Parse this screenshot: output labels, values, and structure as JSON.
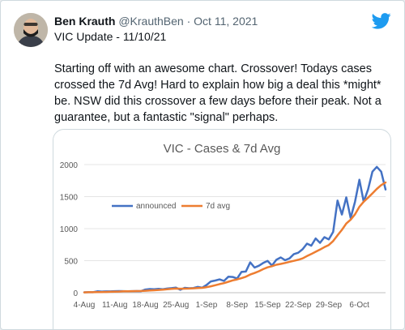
{
  "tweet": {
    "author_name": "Ben Krauth",
    "handle": "@KrauthBen",
    "separator": " · ",
    "date": "Oct 11, 2021",
    "subline": "VIC Update - 11/10/21",
    "text": "Starting off with an awesome chart. Crossover! Todays cases crossed the 7d Avg! Hard to explain how big a deal this *might* be. NSW did this crossover a few days before their peak. Not a guarantee, but a fantastic \"signal\" perhaps."
  },
  "icons": {
    "platform": "twitter-bird-icon",
    "avatar": "avatar-photo"
  },
  "colors": {
    "announced": "#4472c4",
    "avg": "#ed7d31",
    "brand": "#1d9bf0"
  },
  "chart_data": {
    "type": "line",
    "title": "VIC - Cases & 7d Avg",
    "xlabel": "",
    "ylabel": "",
    "ylim": [
      0,
      2000
    ],
    "yticks": [
      "0",
      "500",
      "1000",
      "1500",
      "2000"
    ],
    "xticks": [
      "4-Aug",
      "11-Aug",
      "18-Aug",
      "25-Aug",
      "1-Sep",
      "8-Sep",
      "15-Sep",
      "22-Sep",
      "29-Sep",
      "6-Oct"
    ],
    "grid": true,
    "legend_position": "top-left",
    "series": [
      {
        "name": "announced",
        "values": [
          6,
          8,
          8,
          21,
          18,
          20,
          20,
          24,
          25,
          24,
          22,
          24,
          25,
          24,
          50,
          57,
          55,
          61,
          55,
          64,
          71,
          80,
          45,
          76,
          70,
          73,
          90,
          78,
          120,
          176,
          190,
          208,
          183,
          250,
          246,
          220,
          324,
          330,
          473,
          392,
          421,
          465,
          496,
          424,
          514,
          551,
          507,
          535,
          603,
          624,
          679,
          766,
          734,
          847,
          779,
          867,
          833,
          950,
          1438,
          1220,
          1488,
          1166,
          1420,
          1763,
          1420,
          1612,
          1890,
          1965,
          1890,
          1612
        ]
      },
      {
        "name": "7d avg",
        "values": [
          5,
          7,
          8,
          9,
          10,
          12,
          14,
          16,
          18,
          21,
          22,
          24,
          25,
          26,
          30,
          34,
          38,
          43,
          48,
          53,
          59,
          65,
          62,
          63,
          65,
          68,
          72,
          76,
          86,
          100,
          117,
          134,
          150,
          171,
          193,
          208,
          227,
          249,
          283,
          308,
          336,
          368,
          396,
          414,
          437,
          449,
          464,
          482,
          497,
          514,
          536,
          572,
          604,
          639,
          674,
          712,
          744,
          806,
          896,
          981,
          1080,
          1140,
          1224,
          1342,
          1420,
          1483,
          1550,
          1620,
          1680,
          1720
        ]
      }
    ]
  }
}
